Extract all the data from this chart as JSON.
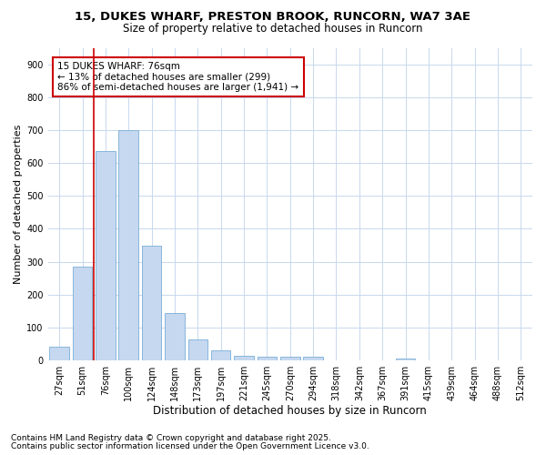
{
  "title1": "15, DUKES WHARF, PRESTON BROOK, RUNCORN, WA7 3AE",
  "title2": "Size of property relative to detached houses in Runcorn",
  "xlabel": "Distribution of detached houses by size in Runcorn",
  "ylabel": "Number of detached properties",
  "categories": [
    "27sqm",
    "51sqm",
    "76sqm",
    "100sqm",
    "124sqm",
    "148sqm",
    "173sqm",
    "197sqm",
    "221sqm",
    "245sqm",
    "270sqm",
    "294sqm",
    "318sqm",
    "342sqm",
    "367sqm",
    "391sqm",
    "415sqm",
    "439sqm",
    "464sqm",
    "488sqm",
    "512sqm"
  ],
  "values": [
    42,
    285,
    635,
    700,
    350,
    145,
    65,
    30,
    15,
    10,
    10,
    10,
    0,
    0,
    0,
    5,
    0,
    0,
    0,
    0,
    0
  ],
  "bar_color": "#c5d8f0",
  "bar_edge_color": "#7aaed6",
  "grid_color": "#c8d8ed",
  "background_color": "#ffffff",
  "vline_color": "#cc0000",
  "vline_x_idx": 2,
  "annotation_title": "15 DUKES WHARF: 76sqm",
  "annotation_line1": "← 13% of detached houses are smaller (299)",
  "annotation_line2": "86% of semi-detached houses are larger (1,941) →",
  "annotation_box_facecolor": "white",
  "annotation_box_edgecolor": "#cc0000",
  "footnote1": "Contains HM Land Registry data © Crown copyright and database right 2025.",
  "footnote2": "Contains public sector information licensed under the Open Government Licence v3.0.",
  "ylim_max": 950,
  "yticks": [
    0,
    100,
    200,
    300,
    400,
    500,
    600,
    700,
    800,
    900
  ],
  "title_fontsize": 9.5,
  "subtitle_fontsize": 8.5,
  "xlabel_fontsize": 8.5,
  "ylabel_fontsize": 8,
  "tick_fontsize": 7,
  "annotation_fontsize": 7.5,
  "footnote_fontsize": 6.5
}
